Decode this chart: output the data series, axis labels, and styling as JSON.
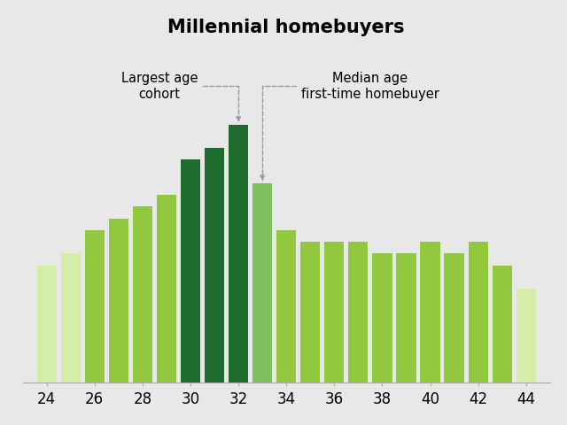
{
  "title": "Millennial homebuyers",
  "ages": [
    24,
    25,
    26,
    27,
    28,
    29,
    30,
    31,
    32,
    33,
    34,
    35,
    36,
    37,
    38,
    39,
    40,
    41,
    42,
    43,
    44
  ],
  "values": [
    88,
    89,
    91,
    92,
    93,
    94,
    97,
    98,
    100,
    95,
    91,
    90,
    90,
    90,
    89,
    89,
    90,
    89,
    90,
    88,
    86
  ],
  "bar_colors": [
    "#d4eeaa",
    "#d4eeaa",
    "#92c83e",
    "#92c83e",
    "#92c83e",
    "#92c83e",
    "#1e6b2e",
    "#1e6b2e",
    "#1e6b2e",
    "#7fbf5e",
    "#92c83e",
    "#92c83e",
    "#92c83e",
    "#92c83e",
    "#92c83e",
    "#92c83e",
    "#92c83e",
    "#92c83e",
    "#92c83e",
    "#92c83e",
    "#d4eeaa"
  ],
  "xtick_labels": [
    "24",
    "26",
    "28",
    "30",
    "32",
    "34",
    "36",
    "38",
    "40",
    "42",
    "44"
  ],
  "xtick_positions": [
    24,
    26,
    28,
    30,
    32,
    34,
    36,
    38,
    40,
    42,
    44
  ],
  "background_color": "#e8e8e8",
  "annotation_left_text": "Largest age\ncohort",
  "annotation_right_text": "Median age\nfirst-time homebuyer",
  "title_fontsize": 15,
  "annot_fontsize": 10.5
}
